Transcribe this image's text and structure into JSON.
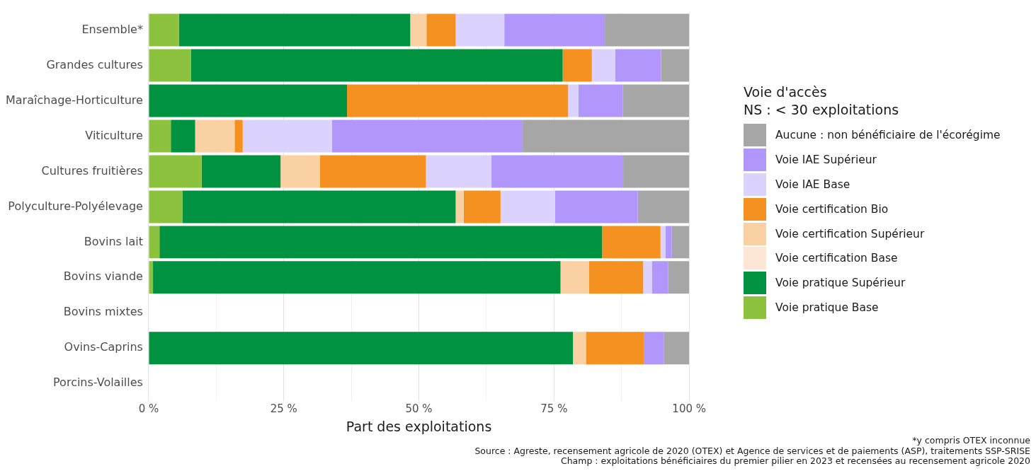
{
  "chart_data": {
    "type": "bar",
    "orientation": "horizontal",
    "stacked": true,
    "xlabel": "Part des exploitations",
    "legend_title": "Voie d'accès",
    "categories": [
      "Ensemble*",
      "Grandes cultures",
      "Maraîchage-Horticulture",
      "Viticulture",
      "Cultures fruitières",
      "Polyculture-Polyélevage",
      "Bovins lait",
      "Bovins viande",
      "Bovins mixtes",
      "Ovins-Caprins",
      "Porcins-Volailles"
    ],
    "series": [
      {
        "name": "Voie pratique Base",
        "color": "#8dc23e",
        "values": [
          5.6,
          7.8,
          0,
          4.1,
          9.8,
          6.3,
          2.0,
          0.8,
          null,
          0,
          null
        ]
      },
      {
        "name": "Voie pratique Supérieur",
        "color": "#009141",
        "values": [
          42.8,
          68.8,
          36.7,
          4.5,
          14.6,
          50.5,
          81.9,
          75.4,
          null,
          78.5,
          null
        ]
      },
      {
        "name": "Voie certification Base",
        "color": "#fde6d6",
        "values": [
          0,
          0,
          0,
          0,
          0,
          0,
          0,
          0,
          null,
          0,
          null
        ]
      },
      {
        "name": "Voie certification Supérieur",
        "color": "#f9d1a2",
        "values": [
          3.0,
          0,
          0,
          7.3,
          7.3,
          1.5,
          0,
          5.3,
          null,
          2.4,
          null
        ]
      },
      {
        "name": "Voie certification Bio",
        "color": "#f59120",
        "values": [
          5.4,
          5.4,
          40.9,
          1.5,
          19.6,
          6.8,
          10.8,
          10.0,
          null,
          10.8,
          null
        ]
      },
      {
        "name": "Voie IAE Base",
        "color": "#dbd3fe",
        "values": [
          9.0,
          4.3,
          1.9,
          16.5,
          12.1,
          10.1,
          0.9,
          1.6,
          null,
          0,
          null
        ]
      },
      {
        "name": "Voie IAE Supérieur",
        "color": "#b197fc",
        "values": [
          18.6,
          8.5,
          8.2,
          35.3,
          24.4,
          15.3,
          1.2,
          3.0,
          null,
          3.6,
          null
        ]
      },
      {
        "name": "Aucune : non bénéficiaire de l'écorégime",
        "color": "#a6a6a6",
        "values": [
          15.6,
          5.2,
          12.3,
          30.8,
          12.2,
          9.5,
          3.2,
          3.9,
          null,
          4.7,
          null
        ]
      }
    ],
    "xlim": [
      0,
      100
    ],
    "xticks": [
      {
        "value": 0,
        "label": "0 %"
      },
      {
        "value": 12.5,
        "label": null
      },
      {
        "value": 25,
        "label": "25 %"
      },
      {
        "value": 37.5,
        "label": null
      },
      {
        "value": 50,
        "label": "50 %"
      },
      {
        "value": 62.5,
        "label": null
      },
      {
        "value": 75,
        "label": "75 %"
      },
      {
        "value": 87.5,
        "label": null
      },
      {
        "value": 100,
        "label": "100 %"
      }
    ],
    "grid": "x",
    "legend": "right",
    "annotations": [
      "NS : < 30 exploitations",
      "*y compris OTEX inconnue",
      "Source : Agreste, recensement agricole de 2020 (OTEX) et Agence de services et de paiements (ASP), traitements SSP-SRISE",
      "Champ : exploitations bénéficiaires du premier pilier en 2023 et recensées au recensement agricole 2020"
    ]
  }
}
